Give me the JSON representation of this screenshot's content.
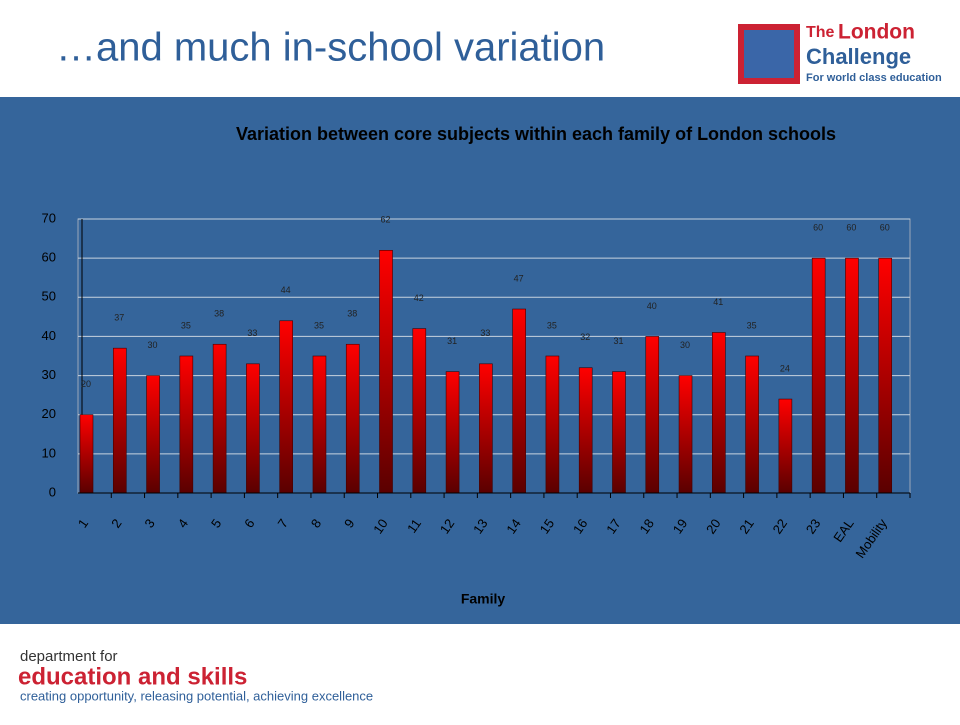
{
  "header": {
    "title": "…and much in-school variation",
    "logo_the": "The",
    "logo_london": "London",
    "logo_challenge": "Challenge",
    "logo_tagline": "For world class education"
  },
  "footer": {
    "line1": "department for",
    "line2": "education and skills",
    "line3": "creating opportunity, releasing potential, achieving excellence"
  },
  "chart_data": {
    "type": "bar",
    "title": "Variation between core subjects within each family of London schools",
    "x_label": "Family",
    "categories": [
      "1",
      "2",
      "3",
      "4",
      "5",
      "6",
      "7",
      "8",
      "9",
      "10",
      "11",
      "12",
      "13",
      "14",
      "15",
      "16",
      "17",
      "18",
      "19",
      "20",
      "21",
      "22",
      "23",
      "EAL",
      "Mobility"
    ],
    "values": [
      20,
      37,
      30,
      35,
      38,
      33,
      44,
      35,
      38,
      62,
      42,
      31,
      33,
      47,
      35,
      32,
      31,
      40,
      30,
      41,
      35,
      24,
      60,
      60,
      60
    ],
    "color": "#ff0000",
    "ylim": [
      0,
      70
    ],
    "yticks": [
      0,
      10,
      20,
      30,
      40,
      50,
      60,
      70
    ],
    "grid": true
  }
}
